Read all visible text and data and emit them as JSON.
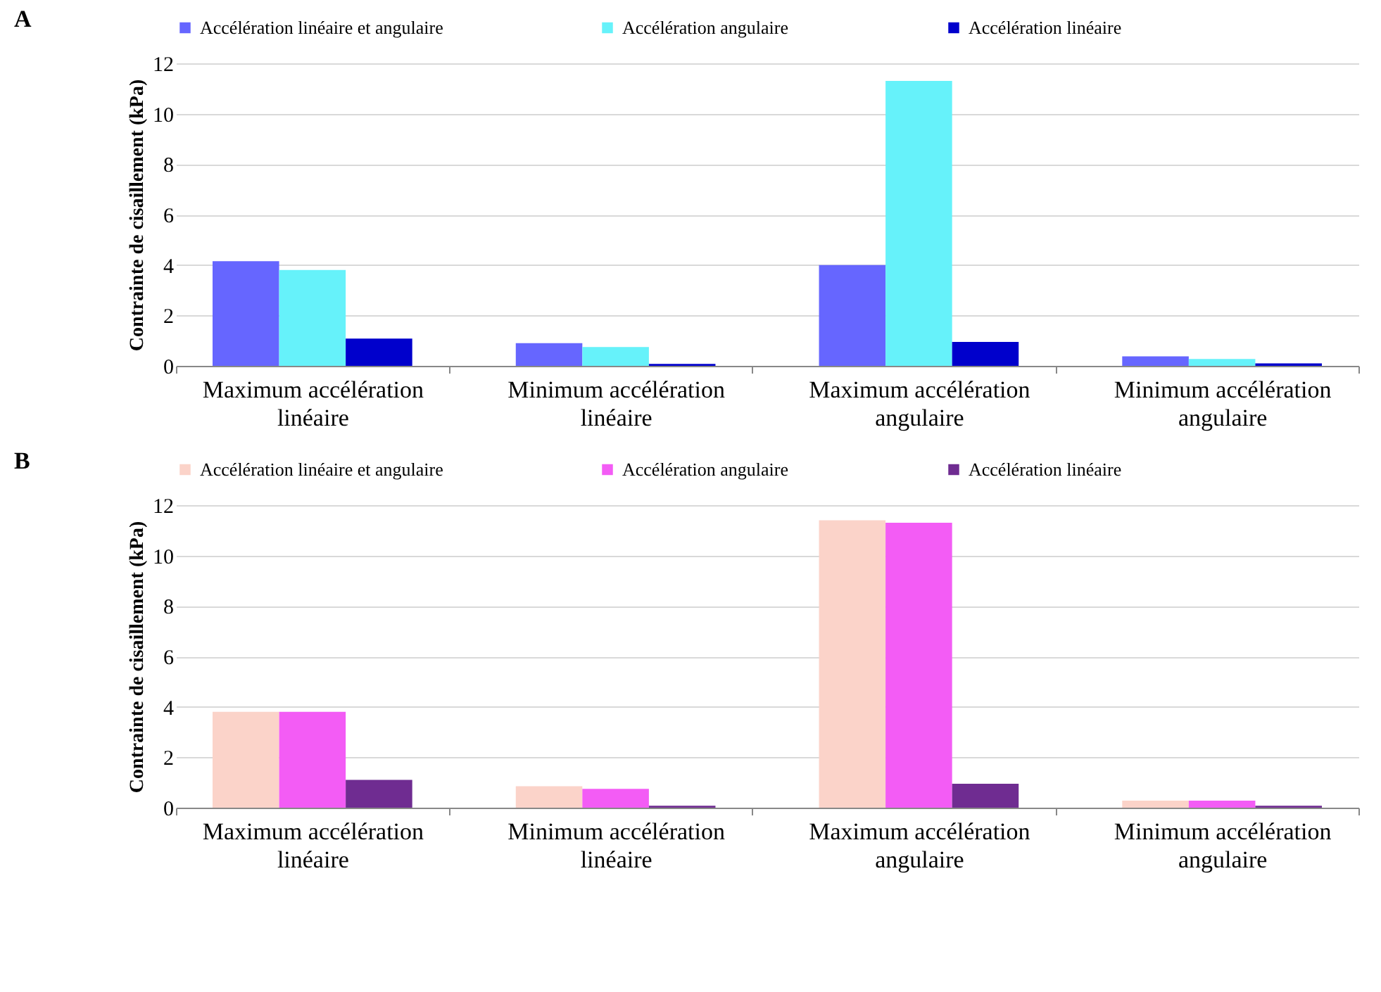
{
  "chart_data": [
    {
      "type": "bar",
      "title": "A",
      "ylabel": "Contrainte de cisaillement (kPa)",
      "categories": [
        "Maximum accélération linéaire",
        "Minimum accélération linéaire",
        "Maximum accélération angulaire",
        "Minimum accélération angulaire"
      ],
      "ylim": [
        0,
        12
      ],
      "yticks": [
        0,
        2,
        4,
        6,
        8,
        10,
        12
      ],
      "grid": "y",
      "legend": "top",
      "series": [
        {
          "name": "Accélération linéaire et angulaire",
          "color": "#6666ff",
          "values": [
            4.15,
            0.9,
            4.0,
            0.38
          ]
        },
        {
          "name": "Accélération angulaire",
          "color": "#66f2fa",
          "values": [
            3.8,
            0.75,
            11.3,
            0.27
          ]
        },
        {
          "name": "Accélération linéaire",
          "color": "#0000cc",
          "values": [
            1.08,
            0.08,
            0.95,
            0.1
          ]
        }
      ]
    },
    {
      "type": "bar",
      "title": "B",
      "ylabel": "Contrainte de cisaillement (kPa)",
      "categories": [
        "Maximum accélération linéaire",
        "Minimum accélération linéaire",
        "Maximum accélération angulaire",
        "Minimum accélération angulaire"
      ],
      "ylim": [
        0,
        12
      ],
      "yticks": [
        0,
        2,
        4,
        6,
        8,
        10,
        12
      ],
      "grid": "y",
      "legend": "top",
      "series": [
        {
          "name": "Accélération linéaire et angulaire",
          "color": "#fbd3c9",
          "values": [
            3.8,
            0.85,
            11.4,
            0.28
          ]
        },
        {
          "name": "Accélération angulaire",
          "color": "#f35cf5",
          "values": [
            3.8,
            0.75,
            11.3,
            0.28
          ]
        },
        {
          "name": "Accélération linéaire",
          "color": "#6f2c91",
          "values": [
            1.1,
            0.08,
            0.95,
            0.08
          ]
        }
      ]
    }
  ]
}
